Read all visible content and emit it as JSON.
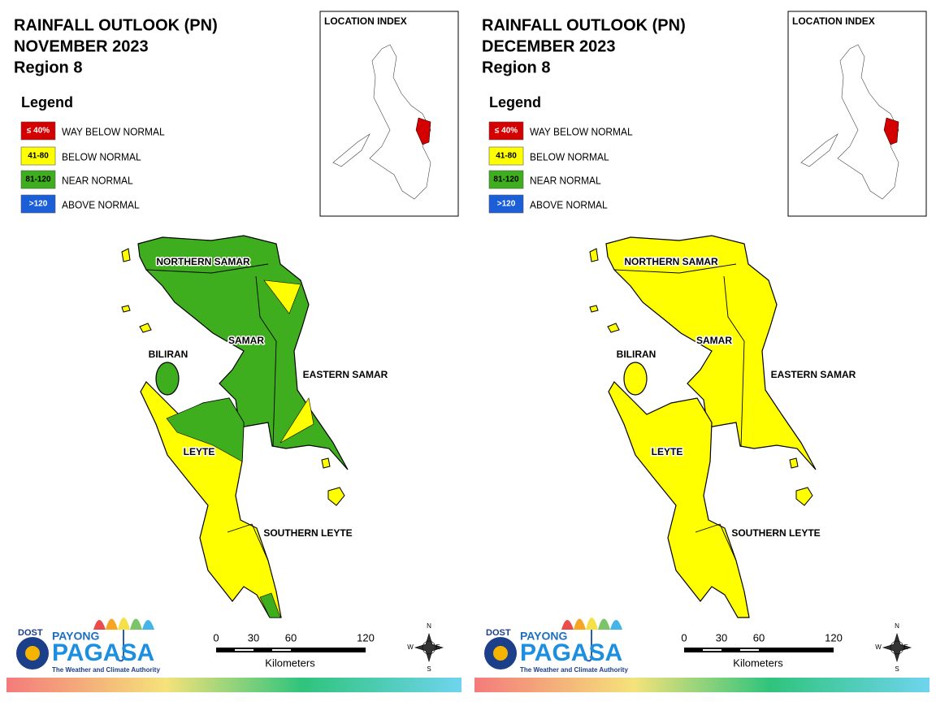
{
  "panels": [
    {
      "title": [
        "RAINFALL OUTLOOK (PN)",
        "NOVEMBER 2023",
        "Region 8"
      ],
      "legend_title": "Legend",
      "legend": [
        {
          "range": "≤ 40%",
          "label": "WAY BELOW NORMAL",
          "color": "#d40000"
        },
        {
          "range": "41-80",
          "label": "BELOW NORMAL",
          "color": "#ffff00"
        },
        {
          "range": "81-120",
          "label": "NEAR NORMAL",
          "color": "#3fae1e"
        },
        {
          "range": ">120",
          "label": "ABOVE NORMAL",
          "color": "#1a5fd8"
        }
      ],
      "location_index": "LOCATION INDEX",
      "provinces": [
        "NORTHERN SAMAR",
        "SAMAR",
        "EASTERN SAMAR",
        "BILIRAN",
        "LEYTE",
        "SOUTHERN LEYTE"
      ],
      "scale": {
        "ticks": [
          0,
          30,
          60,
          120
        ],
        "unit": "Kilometers"
      },
      "compass": [
        "N",
        "E",
        "S",
        "W"
      ],
      "logo": {
        "agency": "DOST",
        "brand_top": "PAYONG",
        "brand": "PAGASA",
        "tagline": "The Weather and Climate Authority"
      }
    },
    {
      "title": [
        "RAINFALL OUTLOOK (PN)",
        "DECEMBER 2023",
        "Region 8"
      ],
      "legend_title": "Legend",
      "legend": [
        {
          "range": "≤ 40%",
          "label": "WAY BELOW NORMAL",
          "color": "#d40000"
        },
        {
          "range": "41-80",
          "label": "BELOW NORMAL",
          "color": "#ffff00"
        },
        {
          "range": "81-120",
          "label": "NEAR NORMAL",
          "color": "#3fae1e"
        },
        {
          "range": ">120",
          "label": "ABOVE NORMAL",
          "color": "#1a5fd8"
        }
      ],
      "location_index": "LOCATION INDEX",
      "provinces": [
        "NORTHERN SAMAR",
        "SAMAR",
        "EASTERN SAMAR",
        "BILIRAN",
        "LEYTE",
        "SOUTHERN LEYTE"
      ],
      "scale": {
        "ticks": [
          0,
          30,
          60,
          120
        ],
        "unit": "Kilometers"
      },
      "compass": [
        "N",
        "E",
        "S",
        "W"
      ],
      "logo": {
        "agency": "DOST",
        "brand_top": "PAYONG",
        "brand": "PAGASA",
        "tagline": "The Weather and Climate Authority"
      }
    }
  ]
}
